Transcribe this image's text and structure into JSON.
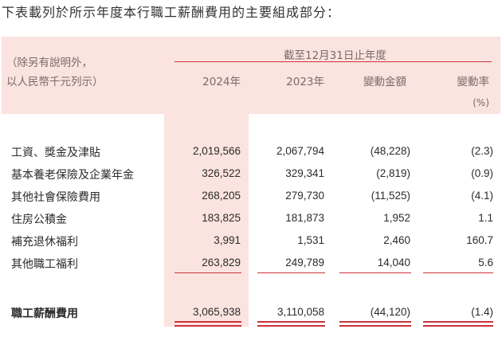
{
  "intro": "下表載列於所示年度本行職工薪酬費用的主要組成部分：",
  "header": {
    "note_line1": "（除另有說明外，",
    "note_line2": "以人民幣千元列示）",
    "period": "截至12月31日止年度",
    "col_2024": "2024年",
    "col_2023": "2023年",
    "col_change": "變動金額",
    "col_rate": "變動率",
    "rate_unit": "(%)"
  },
  "rows": [
    {
      "label": "工資、獎金及津貼",
      "y2024": "2,019,566",
      "y2023": "2,067,794",
      "change": "(48,228)",
      "rate": "(2.3)"
    },
    {
      "label": "基本養老保險及企業年金",
      "y2024": "326,522",
      "y2023": "329,341",
      "change": "(2,819)",
      "rate": "(0.9)"
    },
    {
      "label": "其他社會保險費用",
      "y2024": "268,205",
      "y2023": "279,730",
      "change": "(11,525)",
      "rate": "(4.1)"
    },
    {
      "label": "住房公積金",
      "y2024": "183,825",
      "y2023": "181,873",
      "change": "1,952",
      "rate": "1.1"
    },
    {
      "label": "補充退休福利",
      "y2024": "3,991",
      "y2023": "1,531",
      "change": "2,460",
      "rate": "160.7"
    },
    {
      "label": "其他職工福利",
      "y2024": "263,829",
      "y2023": "249,789",
      "change": "14,040",
      "rate": "5.6"
    }
  ],
  "total": {
    "label": "職工薪酬費用",
    "y2024": "3,065,938",
    "y2023": "3,110,058",
    "change": "(44,120)",
    "rate": "(1.4)"
  },
  "colors": {
    "accent_red": "#c9333a",
    "highlight_pink": "#fbe3df"
  }
}
